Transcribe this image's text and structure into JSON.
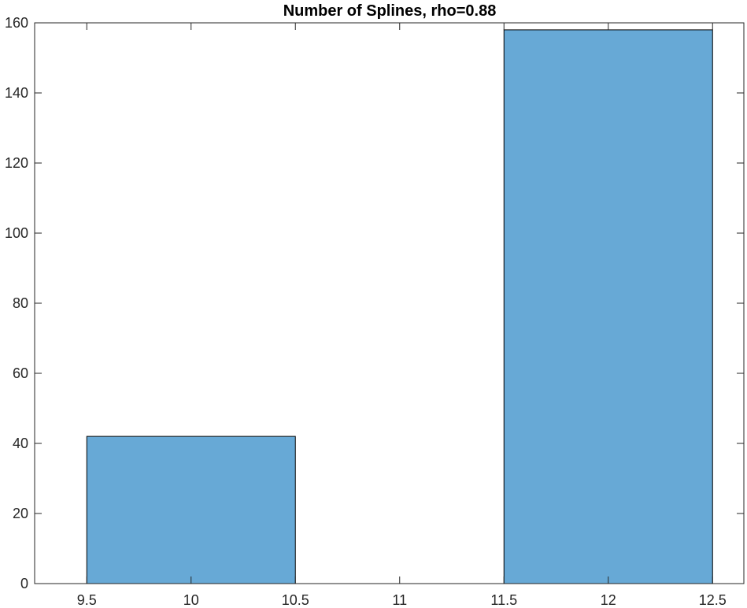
{
  "chart_data": {
    "type": "bar",
    "title": "Number of Splines, rho=0.88",
    "xlabel": "",
    "ylabel": "",
    "bins": [
      {
        "x_start": 9.5,
        "x_end": 10.5,
        "value": 42
      },
      {
        "x_start": 10.5,
        "x_end": 11.5,
        "value": 0
      },
      {
        "x_start": 11.5,
        "x_end": 12.5,
        "value": 158
      }
    ],
    "xlim": [
      9.25,
      12.65
    ],
    "ylim": [
      0,
      160
    ],
    "xticks": [
      9.5,
      10,
      10.5,
      11,
      11.5,
      12,
      12.5
    ],
    "xtick_labels": [
      "9.5",
      "10",
      "10.5",
      "11",
      "11.5",
      "12",
      "12.5"
    ],
    "yticks": [
      0,
      20,
      40,
      60,
      80,
      100,
      120,
      140,
      160
    ],
    "ytick_labels": [
      "0",
      "20",
      "40",
      "60",
      "80",
      "100",
      "120",
      "140",
      "160"
    ],
    "grid": false,
    "bar_color": "#67a9d6",
    "edge_color": "#000000"
  }
}
